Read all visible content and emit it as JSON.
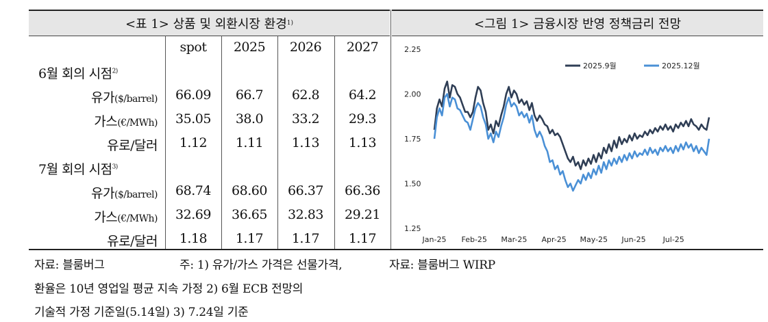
{
  "table": {
    "title": "<표 1> 상품 및 외환시장 환경",
    "title_sup": "1)",
    "columns": [
      "spot",
      "2025",
      "2026",
      "2027"
    ],
    "sections": [
      {
        "label": "6월 회의 시점",
        "label_sup": "2)",
        "rows": [
          {
            "name": "유가",
            "unit": "($/barrel)",
            "values": [
              "66.09",
              "66.7",
              "62.8",
              "64.2"
            ]
          },
          {
            "name": "가스",
            "unit": "(€/MWh)",
            "values": [
              "35.05",
              "38.0",
              "33.2",
              "29.3"
            ]
          },
          {
            "name": "유로/달러",
            "unit": "",
            "values": [
              "1.12",
              "1.11",
              "1.13",
              "1.13"
            ]
          }
        ]
      },
      {
        "label": "7월 회의 시점",
        "label_sup": "3)",
        "rows": [
          {
            "name": "유가",
            "unit": "($/barrel)",
            "values": [
              "68.74",
              "68.60",
              "66.37",
              "66.36"
            ]
          },
          {
            "name": "가스",
            "unit": "(€/MWh)",
            "values": [
              "32.69",
              "36.65",
              "32.83",
              "29.21"
            ]
          },
          {
            "name": "유로/달러",
            "unit": "",
            "values": [
              "1.18",
              "1.17",
              "1.17",
              "1.17"
            ]
          }
        ]
      }
    ]
  },
  "figure": {
    "title": "<그림 1> 금융시장 반영 정책금리 전망"
  },
  "notes": {
    "line1_left": "자료: 블룸버그",
    "line1_mid": "주: 1) 유가/가스 가격은 선물가격,",
    "line1_right": "자료: 블룸버그 WIRP",
    "line2": "환율은 10년 영업일 평균 지속 가정   2) 6월 ECB 전망의",
    "line3": "기술적 가정 기준일(5.14일)   3) 7.24일 기준"
  },
  "chart_data": {
    "type": "line",
    "title": "",
    "xlabel": "",
    "ylabel": "",
    "ylim": [
      1.25,
      2.25
    ],
    "yticks": [
      "2.25",
      "2.00",
      "1.75",
      "1.50",
      "1.25"
    ],
    "xticks": [
      "Jan-25",
      "Feb-25",
      "Mar-25",
      "Apr-25",
      "May-25",
      "Jun-25",
      "Jul-25"
    ],
    "legend_position": "top-right",
    "colors": {
      "2025.9월": "#2f3e55",
      "2025.12월": "#4a90d6"
    },
    "series": [
      {
        "name": "2025.9월",
        "values": [
          1.8,
          1.92,
          1.97,
          1.93,
          2.03,
          2.07,
          1.98,
          2.05,
          2.04,
          2.0,
          1.98,
          1.94,
          1.9,
          1.9,
          1.87,
          1.9,
          1.98,
          2.04,
          2.02,
          1.95,
          1.9,
          1.8,
          1.83,
          1.78,
          1.85,
          1.82,
          1.88,
          1.93,
          2.0,
          2.04,
          1.98,
          2.02,
          2.0,
          1.95,
          1.97,
          1.94,
          1.96,
          1.91,
          1.95,
          1.88,
          1.85,
          1.88,
          1.86,
          1.83,
          1.82,
          1.78,
          1.8,
          1.77,
          1.78,
          1.76,
          1.72,
          1.68,
          1.64,
          1.62,
          1.65,
          1.6,
          1.62,
          1.58,
          1.63,
          1.6,
          1.64,
          1.61,
          1.66,
          1.62,
          1.67,
          1.64,
          1.7,
          1.67,
          1.72,
          1.68,
          1.74,
          1.7,
          1.76,
          1.72,
          1.75,
          1.73,
          1.77,
          1.74,
          1.78,
          1.75,
          1.77,
          1.76,
          1.79,
          1.77,
          1.8,
          1.78,
          1.81,
          1.79,
          1.82,
          1.8,
          1.83,
          1.8,
          1.82,
          1.79,
          1.83,
          1.81,
          1.84,
          1.82,
          1.85,
          1.82,
          1.86,
          1.83,
          1.82,
          1.8,
          1.83,
          1.81,
          1.8,
          1.87
        ]
      },
      {
        "name": "2025.12월",
        "values": [
          1.75,
          1.87,
          1.92,
          1.88,
          1.98,
          2.0,
          1.93,
          1.98,
          1.97,
          1.92,
          1.91,
          1.88,
          1.85,
          1.84,
          1.8,
          1.86,
          1.92,
          1.95,
          1.93,
          1.87,
          1.83,
          1.75,
          1.78,
          1.73,
          1.79,
          1.76,
          1.82,
          1.87,
          1.94,
          1.98,
          1.93,
          1.95,
          1.93,
          1.88,
          1.9,
          1.87,
          1.89,
          1.84,
          1.88,
          1.8,
          1.76,
          1.79,
          1.76,
          1.71,
          1.68,
          1.62,
          1.63,
          1.58,
          1.6,
          1.55,
          1.57,
          1.52,
          1.48,
          1.5,
          1.46,
          1.49,
          1.52,
          1.5,
          1.55,
          1.52,
          1.56,
          1.53,
          1.58,
          1.55,
          1.6,
          1.56,
          1.62,
          1.58,
          1.63,
          1.6,
          1.64,
          1.61,
          1.65,
          1.62,
          1.66,
          1.63,
          1.67,
          1.64,
          1.68,
          1.65,
          1.67,
          1.66,
          1.69,
          1.66,
          1.7,
          1.67,
          1.69,
          1.66,
          1.7,
          1.68,
          1.71,
          1.68,
          1.7,
          1.67,
          1.71,
          1.68,
          1.72,
          1.69,
          1.73,
          1.7,
          1.72,
          1.68,
          1.71,
          1.67,
          1.7,
          1.68,
          1.66,
          1.75
        ]
      }
    ]
  }
}
